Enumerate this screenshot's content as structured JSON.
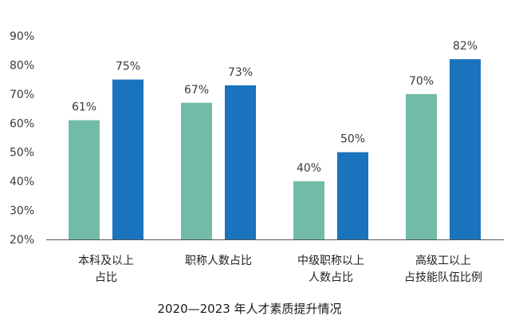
{
  "chart_data": {
    "type": "bar",
    "title": "2020—2023 年人才素质提升情况",
    "categories": [
      [
        "本科及以上",
        "占比"
      ],
      [
        "职称人数占比"
      ],
      [
        "中级职称以上",
        "人数占比"
      ],
      [
        "高级工以上",
        "占技能队伍比例"
      ]
    ],
    "series": [
      {
        "values": [
          61,
          67,
          40,
          70
        ],
        "color": "#72bba9"
      },
      {
        "values": [
          75,
          73,
          50,
          82
        ],
        "color": "#1a73bd"
      }
    ],
    "ylim": [
      20,
      90
    ],
    "yticks": [
      "20%",
      "30%",
      "40%",
      "50%",
      "60%",
      "70%",
      "80%",
      "90%"
    ],
    "value_suffix": "%",
    "grid": false,
    "legend": "none"
  }
}
